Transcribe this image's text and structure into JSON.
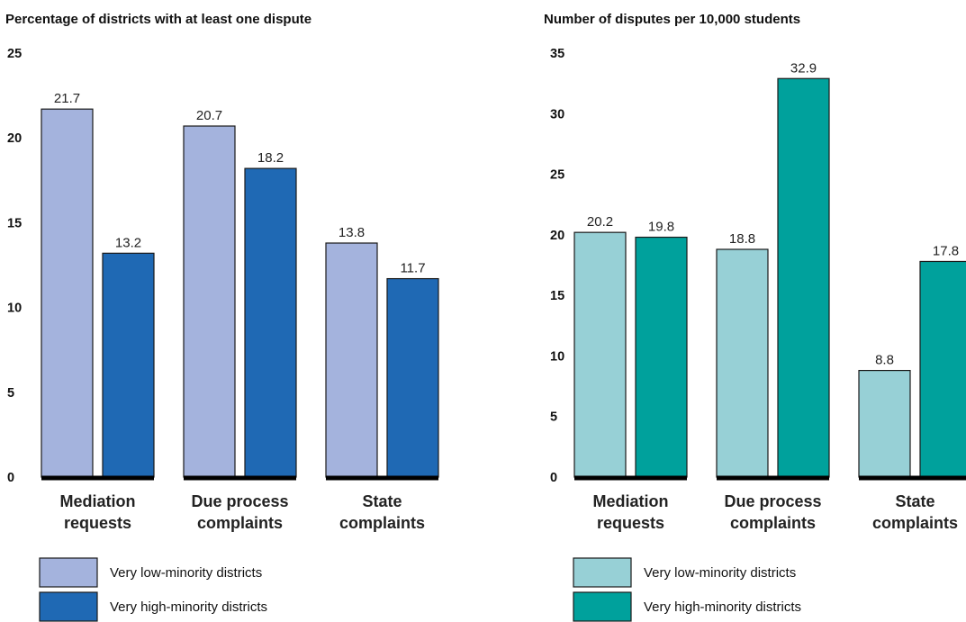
{
  "chart_data": [
    {
      "type": "bar",
      "title": "Percentage of districts with at least one dispute",
      "categories": [
        [
          "Mediation",
          "requests"
        ],
        [
          "Due process",
          "complaints"
        ],
        [
          "State",
          "complaints"
        ]
      ],
      "series": [
        {
          "name": "Very low-minority districts",
          "values": [
            21.7,
            20.7,
            13.8
          ],
          "labels": [
            "21.7",
            "20.7",
            "13.8"
          ],
          "color": "#a4b3dd"
        },
        {
          "name": "Very high-minority districts",
          "values": [
            13.2,
            18.2,
            11.7
          ],
          "labels": [
            "13.2",
            "18.2",
            "11.7"
          ],
          "color": "#1f69b4"
        }
      ],
      "ylim": [
        0,
        25
      ],
      "yticks": [
        "0",
        "5",
        "10",
        "15",
        "20",
        "25"
      ],
      "grid": false,
      "legend": "bottom-left"
    },
    {
      "type": "bar",
      "title": "Number of disputes per 10,000 students",
      "categories": [
        [
          "Mediation",
          "requests"
        ],
        [
          "Due process",
          "complaints"
        ],
        [
          "State",
          "complaints"
        ]
      ],
      "series": [
        {
          "name": "Very low-minority districts",
          "values": [
            20.2,
            18.8,
            8.8
          ],
          "labels": [
            "20.2",
            "18.8",
            "8.8"
          ],
          "color": "#97d0d6"
        },
        {
          "name": "Very high-minority districts",
          "values": [
            19.8,
            32.9,
            17.8
          ],
          "labels": [
            "19.8",
            "32.9",
            "17.8"
          ],
          "color": "#00a19c"
        }
      ],
      "ylim": [
        0,
        35
      ],
      "yticks": [
        "0",
        "5",
        "10",
        "15",
        "20",
        "25",
        "30",
        "35"
      ],
      "grid": false,
      "legend": "bottom-left"
    }
  ]
}
